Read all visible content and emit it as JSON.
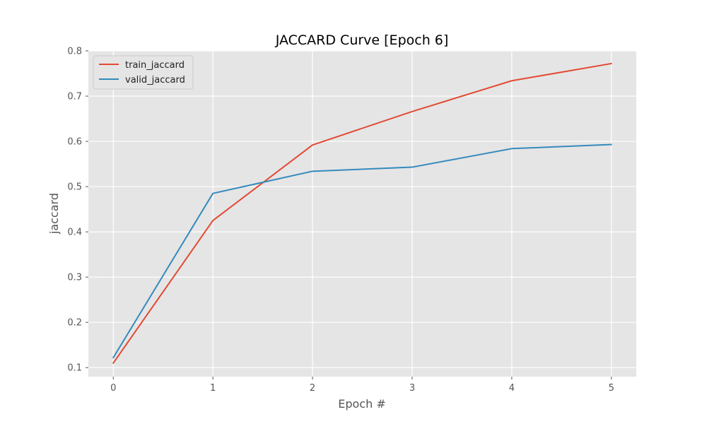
{
  "chart_data": {
    "type": "line",
    "title": "JACCARD Curve [Epoch 6]",
    "xlabel": "Epoch #",
    "ylabel": "jaccard",
    "x": [
      0,
      1,
      2,
      3,
      4,
      5
    ],
    "xticks": [
      "0",
      "1",
      "2",
      "3",
      "4",
      "5"
    ],
    "yticks": [
      "0.1",
      "0.2",
      "0.3",
      "0.4",
      "0.5",
      "0.6",
      "0.7",
      "0.8"
    ],
    "xlim": [
      -0.25,
      5.25
    ],
    "ylim": [
      0.08,
      0.8
    ],
    "grid": true,
    "legend_position": "top-left",
    "series": [
      {
        "name": "train_jaccard",
        "color": "#E24A33",
        "values": [
          0.11,
          0.425,
          0.592,
          0.666,
          0.734,
          0.772
        ]
      },
      {
        "name": "valid_jaccard",
        "color": "#348ABD",
        "values": [
          0.122,
          0.485,
          0.534,
          0.543,
          0.584,
          0.593
        ]
      }
    ],
    "background": "#E5E5E5"
  }
}
